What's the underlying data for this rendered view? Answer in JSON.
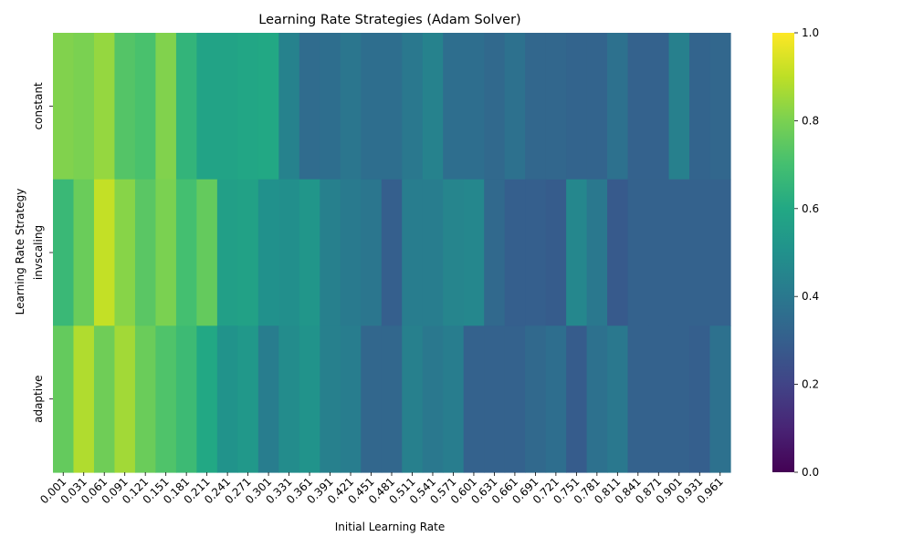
{
  "chart_data": {
    "type": "heatmap",
    "title": "Learning Rate Strategies (Adam Solver)",
    "xlabel": "Initial Learning Rate",
    "ylabel": "Learning Rate Strategy",
    "colormap": "viridis",
    "colorbar": {
      "vmin": 0.0,
      "vmax": 1.0,
      "ticks": [
        "0.0",
        "0.2",
        "0.4",
        "0.6",
        "0.8",
        "1.0"
      ]
    },
    "x_labels": [
      "0.001",
      "0.031",
      "0.061",
      "0.091",
      "0.121",
      "0.151",
      "0.181",
      "0.211",
      "0.241",
      "0.271",
      "0.301",
      "0.331",
      "0.361",
      "0.391",
      "0.421",
      "0.451",
      "0.481",
      "0.511",
      "0.541",
      "0.571",
      "0.601",
      "0.631",
      "0.661",
      "0.691",
      "0.721",
      "0.751",
      "0.781",
      "0.811",
      "0.841",
      "0.871",
      "0.901",
      "0.931",
      "0.961"
    ],
    "y_labels": [
      "constant",
      "invscaling",
      "adaptive"
    ],
    "values": [
      [
        0.81,
        0.8,
        0.84,
        0.73,
        0.71,
        0.81,
        0.65,
        0.58,
        0.58,
        0.59,
        0.6,
        0.44,
        0.35,
        0.36,
        0.39,
        0.36,
        0.36,
        0.4,
        0.44,
        0.36,
        0.36,
        0.34,
        0.37,
        0.33,
        0.33,
        0.32,
        0.32,
        0.37,
        0.31,
        0.31,
        0.43,
        0.32,
        0.33
      ],
      [
        0.67,
        0.77,
        0.91,
        0.82,
        0.74,
        0.8,
        0.7,
        0.76,
        0.56,
        0.57,
        0.5,
        0.49,
        0.52,
        0.43,
        0.41,
        0.39,
        0.3,
        0.42,
        0.42,
        0.45,
        0.46,
        0.34,
        0.3,
        0.3,
        0.29,
        0.46,
        0.4,
        0.28,
        0.31,
        0.31,
        0.31,
        0.31,
        0.31
      ],
      [
        0.76,
        0.88,
        0.78,
        0.86,
        0.77,
        0.72,
        0.68,
        0.6,
        0.51,
        0.53,
        0.42,
        0.48,
        0.51,
        0.43,
        0.42,
        0.33,
        0.33,
        0.43,
        0.4,
        0.42,
        0.31,
        0.31,
        0.31,
        0.34,
        0.36,
        0.29,
        0.37,
        0.4,
        0.31,
        0.31,
        0.31,
        0.3,
        0.37
      ]
    ]
  }
}
